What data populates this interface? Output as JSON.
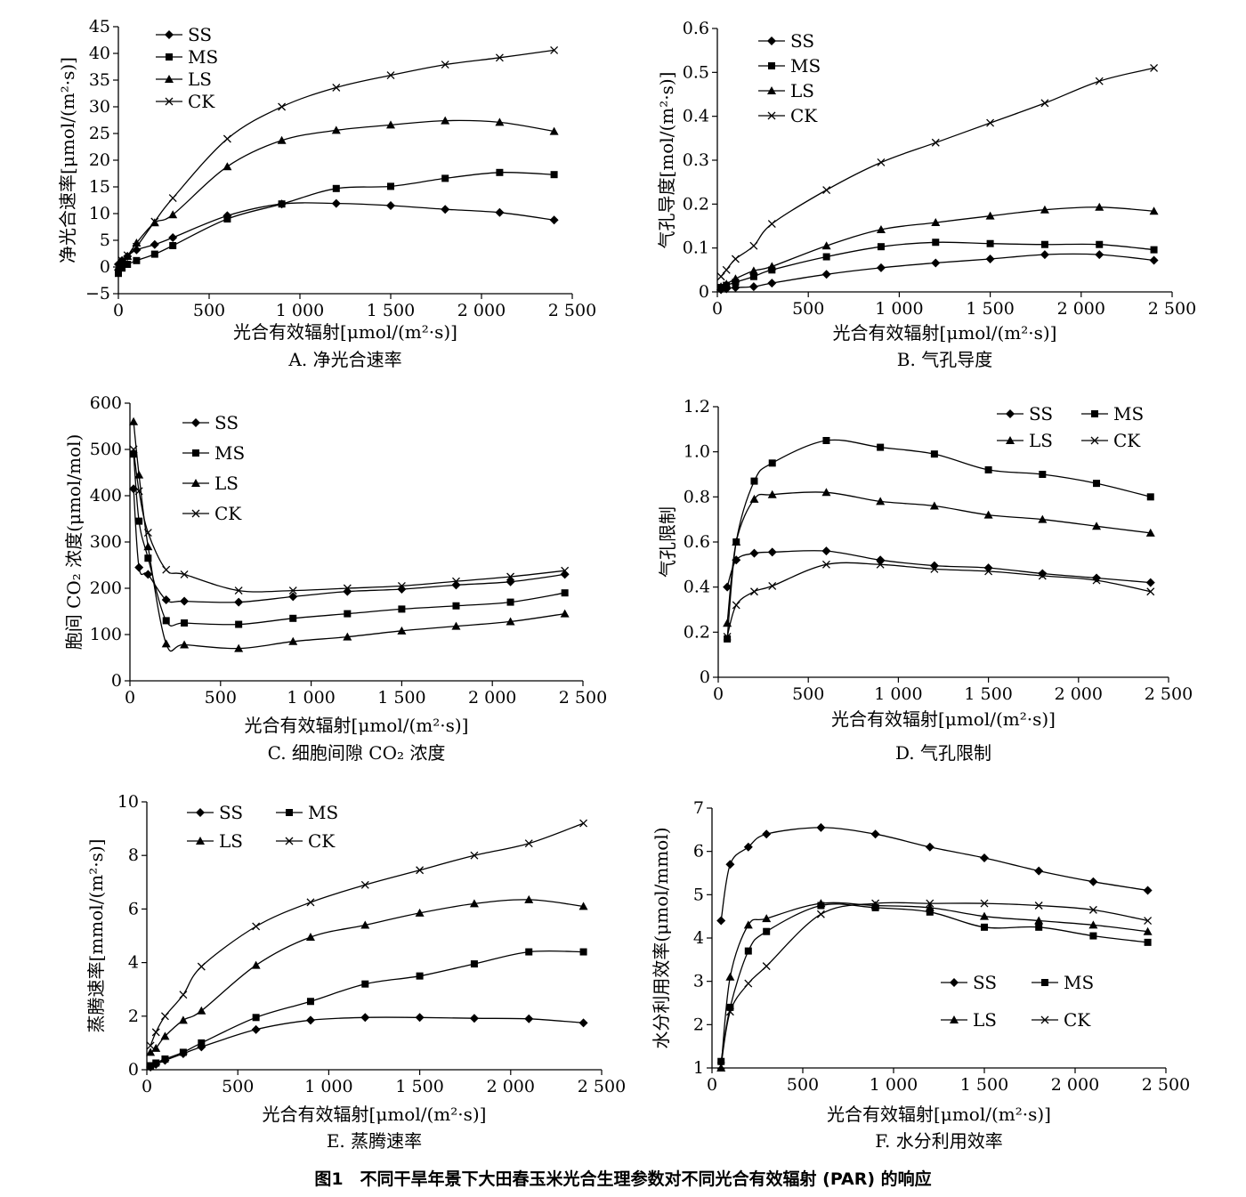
{
  "figure_caption": "图1　不同干旱年景下大田春玉米光合生理参数对不同光合有效辐射 (PAR) 的响应",
  "chart_data": [
    {
      "id": "A",
      "type": "line",
      "panel_title": "A. 净光合速率",
      "xlabel": "光合有效辐射[μmol/(m²·s)]",
      "ylabel": "净光合速率[μmol/(m²·s)]",
      "xlim": [
        0,
        2500
      ],
      "ylim": [
        -5,
        45
      ],
      "xticks": [
        0,
        500,
        1000,
        1500,
        2000,
        2500
      ],
      "xtick_labels": [
        "0",
        "500",
        "1 000",
        "1 500",
        "2 000",
        "2 500"
      ],
      "yticks": [
        -5,
        0,
        5,
        10,
        15,
        20,
        25,
        30,
        35,
        40,
        45
      ],
      "ytick_labels": [
        "−5",
        "0",
        "5",
        "10",
        "15",
        "20",
        "25",
        "30",
        "35",
        "40",
        "45"
      ],
      "legend": "top-left",
      "legend_cols": 1,
      "series": [
        {
          "name": "SS",
          "marker": "diamond",
          "x": [
            0,
            20,
            50,
            100,
            200,
            300,
            600,
            900,
            1200,
            1500,
            1800,
            2100,
            2400
          ],
          "y": [
            0.5,
            1.2,
            2.0,
            3.2,
            4.2,
            5.5,
            9.6,
            11.8,
            11.9,
            11.5,
            10.8,
            10.2,
            8.8
          ]
        },
        {
          "name": "MS",
          "marker": "square",
          "x": [
            0,
            20,
            50,
            100,
            200,
            300,
            600,
            900,
            1200,
            1500,
            1800,
            2100,
            2400
          ],
          "y": [
            -1.2,
            -0.2,
            0.5,
            1.2,
            2.4,
            4.0,
            9.0,
            11.8,
            14.7,
            15.1,
            16.6,
            17.7,
            17.3
          ]
        },
        {
          "name": "LS",
          "marker": "triangle",
          "x": [
            0,
            20,
            50,
            100,
            200,
            300,
            600,
            900,
            1200,
            1500,
            1800,
            2100,
            2400
          ],
          "y": [
            0.0,
            0.8,
            2.0,
            4.5,
            8.3,
            9.8,
            18.8,
            23.7,
            25.6,
            26.6,
            27.4,
            27.1,
            25.4
          ]
        },
        {
          "name": "CK",
          "marker": "x",
          "x": [
            0,
            20,
            50,
            100,
            200,
            300,
            600,
            900,
            1200,
            1500,
            1800,
            2100,
            2400
          ],
          "y": [
            0.0,
            1.2,
            2.2,
            3.8,
            8.5,
            12.9,
            24.0,
            30.0,
            33.6,
            35.9,
            37.9,
            39.2,
            40.6
          ]
        }
      ]
    },
    {
      "id": "B",
      "type": "line",
      "panel_title": "B. 气孔导度",
      "xlabel": "光合有效辐射[μmol/(m²·s)]",
      "ylabel": "气孔导度[mol/(m²·s)]",
      "xlim": [
        0,
        2500
      ],
      "ylim": [
        0,
        0.6
      ],
      "xticks": [
        0,
        500,
        1000,
        1500,
        2000,
        2500
      ],
      "xtick_labels": [
        "0",
        "500",
        "1 000",
        "1 500",
        "2 000",
        "2 500"
      ],
      "yticks": [
        0,
        0.1,
        0.2,
        0.3,
        0.4,
        0.5,
        0.6
      ],
      "ytick_labels": [
        "0",
        "0.1",
        "0.2",
        "0.3",
        "0.4",
        "0.5",
        "0.6"
      ],
      "legend": "top-left",
      "legend_cols": 1,
      "series": [
        {
          "name": "SS",
          "marker": "diamond",
          "x": [
            20,
            50,
            100,
            200,
            300,
            600,
            900,
            1200,
            1500,
            1800,
            2100,
            2400
          ],
          "y": [
            0.005,
            0.007,
            0.01,
            0.012,
            0.02,
            0.04,
            0.055,
            0.066,
            0.075,
            0.085,
            0.085,
            0.072
          ]
        },
        {
          "name": "MS",
          "marker": "square",
          "x": [
            20,
            50,
            100,
            200,
            300,
            600,
            900,
            1200,
            1500,
            1800,
            2100,
            2400
          ],
          "y": [
            0.01,
            0.015,
            0.022,
            0.035,
            0.05,
            0.08,
            0.103,
            0.113,
            0.11,
            0.108,
            0.108,
            0.096
          ]
        },
        {
          "name": "LS",
          "marker": "triangle",
          "x": [
            20,
            50,
            100,
            200,
            300,
            600,
            900,
            1200,
            1500,
            1800,
            2100,
            2400
          ],
          "y": [
            0.012,
            0.018,
            0.03,
            0.048,
            0.058,
            0.105,
            0.142,
            0.158,
            0.173,
            0.187,
            0.193,
            0.184
          ]
        },
        {
          "name": "CK",
          "marker": "x",
          "x": [
            20,
            50,
            100,
            200,
            300,
            600,
            900,
            1200,
            1500,
            1800,
            2100,
            2400
          ],
          "y": [
            0.035,
            0.05,
            0.075,
            0.105,
            0.155,
            0.232,
            0.295,
            0.34,
            0.385,
            0.43,
            0.48,
            0.51
          ]
        }
      ]
    },
    {
      "id": "C",
      "type": "line",
      "panel_title": "C. 细胞间隙 CO₂ 浓度",
      "xlabel": "光合有效辐射[μmol/(m²·s)]",
      "ylabel": "胞间 CO₂ 浓度(μmol/mol)",
      "xlim": [
        0,
        2500
      ],
      "ylim": [
        0,
        600
      ],
      "xticks": [
        0,
        500,
        1000,
        1500,
        2000,
        2500
      ],
      "xtick_labels": [
        "0",
        "500",
        "1 000",
        "1 500",
        "2 000",
        "2 500"
      ],
      "yticks": [
        0,
        100,
        200,
        300,
        400,
        500,
        600
      ],
      "ytick_labels": [
        "0",
        "100",
        "200",
        "300",
        "400",
        "500",
        "600"
      ],
      "legend": "top-left",
      "legend_cols": 1,
      "series": [
        {
          "name": "SS",
          "marker": "diamond",
          "x": [
            20,
            50,
            100,
            200,
            300,
            600,
            900,
            1200,
            1500,
            1800,
            2100,
            2400
          ],
          "y": [
            415,
            245,
            230,
            175,
            172,
            170,
            182,
            193,
            198,
            207,
            214,
            230
          ]
        },
        {
          "name": "MS",
          "marker": "square",
          "x": [
            20,
            50,
            100,
            200,
            300,
            600,
            900,
            1200,
            1500,
            1800,
            2100,
            2400
          ],
          "y": [
            490,
            345,
            265,
            130,
            125,
            122,
            135,
            145,
            155,
            162,
            170,
            190
          ]
        },
        {
          "name": "LS",
          "marker": "triangle",
          "x": [
            20,
            50,
            100,
            200,
            300,
            600,
            900,
            1200,
            1500,
            1800,
            2100,
            2400
          ],
          "y": [
            560,
            445,
            290,
            80,
            78,
            70,
            85,
            95,
            108,
            118,
            128,
            145
          ]
        },
        {
          "name": "CK",
          "marker": "x",
          "x": [
            20,
            50,
            100,
            200,
            300,
            600,
            900,
            1200,
            1500,
            1800,
            2100,
            2400
          ],
          "y": [
            500,
            410,
            320,
            240,
            230,
            195,
            195,
            200,
            205,
            215,
            225,
            238
          ]
        }
      ]
    },
    {
      "id": "D",
      "type": "line",
      "panel_title": "D. 气孔限制",
      "xlabel": "光合有效辐射[μmol/(m²·s)]",
      "ylabel": "气孔限制",
      "xlim": [
        0,
        2500
      ],
      "ylim": [
        0,
        1.2
      ],
      "xticks": [
        0,
        500,
        1000,
        1500,
        2000,
        2500
      ],
      "xtick_labels": [
        "0",
        "500",
        "1 000",
        "1 500",
        "2 000",
        "2 500"
      ],
      "yticks": [
        0,
        0.2,
        0.4,
        0.6,
        0.8,
        1.0,
        1.2
      ],
      "ytick_labels": [
        "0",
        "0.2",
        "0.4",
        "0.6",
        "0.8",
        "1.0",
        "1.2"
      ],
      "legend": "top-right",
      "legend_cols": 2,
      "series": [
        {
          "name": "SS",
          "marker": "diamond",
          "x": [
            50,
            100,
            200,
            300,
            600,
            900,
            1200,
            1500,
            1800,
            2100,
            2400
          ],
          "y": [
            0.4,
            0.52,
            0.55,
            0.555,
            0.56,
            0.52,
            0.495,
            0.485,
            0.46,
            0.44,
            0.42
          ]
        },
        {
          "name": "MS",
          "marker": "square",
          "x": [
            50,
            100,
            200,
            300,
            600,
            900,
            1200,
            1500,
            1800,
            2100,
            2400
          ],
          "y": [
            0.17,
            0.6,
            0.87,
            0.95,
            1.05,
            1.02,
            0.99,
            0.92,
            0.9,
            0.86,
            0.8
          ]
        },
        {
          "name": "LS",
          "marker": "triangle",
          "x": [
            50,
            100,
            200,
            300,
            600,
            900,
            1200,
            1500,
            1800,
            2100,
            2400
          ],
          "y": [
            0.24,
            0.6,
            0.79,
            0.81,
            0.82,
            0.78,
            0.76,
            0.72,
            0.7,
            0.67,
            0.64
          ]
        },
        {
          "name": "CK",
          "marker": "x",
          "x": [
            50,
            100,
            200,
            300,
            600,
            900,
            1200,
            1500,
            1800,
            2100,
            2400
          ],
          "y": [
            0.18,
            0.32,
            0.38,
            0.405,
            0.5,
            0.5,
            0.48,
            0.47,
            0.45,
            0.43,
            0.38
          ]
        }
      ]
    },
    {
      "id": "E",
      "type": "line",
      "panel_title": "E. 蒸腾速率",
      "xlabel": "光合有效辐射[μmol/(m²·s)]",
      "ylabel": "蒸腾速率[mmol/(m²·s)]",
      "xlim": [
        0,
        2500
      ],
      "ylim": [
        0,
        10
      ],
      "xticks": [
        0,
        500,
        1000,
        1500,
        2000,
        2500
      ],
      "xtick_labels": [
        "0",
        "500",
        "1 000",
        "1 500",
        "2 000",
        "2 500"
      ],
      "yticks": [
        0,
        2,
        4,
        6,
        8,
        10
      ],
      "ytick_labels": [
        "0",
        "2",
        "4",
        "6",
        "8",
        "10"
      ],
      "legend": "top-left",
      "legend_cols": 2,
      "series": [
        {
          "name": "SS",
          "marker": "diamond",
          "x": [
            20,
            50,
            100,
            200,
            300,
            600,
            900,
            1200,
            1500,
            1800,
            2100,
            2400
          ],
          "y": [
            0.1,
            0.2,
            0.35,
            0.6,
            0.85,
            1.5,
            1.85,
            1.95,
            1.95,
            1.92,
            1.9,
            1.75
          ]
        },
        {
          "name": "MS",
          "marker": "square",
          "x": [
            20,
            50,
            100,
            200,
            300,
            600,
            900,
            1200,
            1500,
            1800,
            2100,
            2400
          ],
          "y": [
            0.15,
            0.25,
            0.4,
            0.65,
            1.0,
            1.95,
            2.55,
            3.2,
            3.5,
            3.95,
            4.4,
            4.4
          ]
        },
        {
          "name": "LS",
          "marker": "triangle",
          "x": [
            20,
            50,
            100,
            200,
            300,
            600,
            900,
            1200,
            1500,
            1800,
            2100,
            2400
          ],
          "y": [
            0.65,
            0.8,
            1.25,
            1.85,
            2.2,
            3.9,
            4.95,
            5.4,
            5.85,
            6.2,
            6.35,
            6.1
          ]
        },
        {
          "name": "CK",
          "marker": "x",
          "x": [
            20,
            50,
            100,
            200,
            300,
            600,
            900,
            1200,
            1500,
            1800,
            2100,
            2400
          ],
          "y": [
            0.9,
            1.4,
            2.0,
            2.8,
            3.85,
            5.35,
            6.25,
            6.9,
            7.45,
            8.0,
            8.45,
            9.2
          ]
        }
      ]
    },
    {
      "id": "F",
      "type": "line",
      "panel_title": "F. 水分利用效率",
      "xlabel": "光合有效辐射[μmol/(m²·s)]",
      "ylabel": "水分利用效率(μmol/mmol)",
      "xlim": [
        0,
        2500
      ],
      "ylim": [
        1,
        7
      ],
      "xticks": [
        0,
        500,
        1000,
        1500,
        2000,
        2500
      ],
      "xtick_labels": [
        "0",
        "500",
        "1 000",
        "1 500",
        "2 000",
        "2 500"
      ],
      "yticks": [
        1,
        2,
        3,
        4,
        5,
        6,
        7
      ],
      "ytick_labels": [
        "1",
        "2",
        "3",
        "4",
        "5",
        "6",
        "7"
      ],
      "legend": "bottom-right",
      "legend_cols": 2,
      "series": [
        {
          "name": "SS",
          "marker": "diamond",
          "x": [
            50,
            100,
            200,
            300,
            600,
            900,
            1200,
            1500,
            1800,
            2100,
            2400
          ],
          "y": [
            4.4,
            5.7,
            6.1,
            6.4,
            6.55,
            6.4,
            6.1,
            5.85,
            5.55,
            5.3,
            5.1
          ]
        },
        {
          "name": "MS",
          "marker": "square",
          "x": [
            50,
            100,
            200,
            300,
            600,
            900,
            1200,
            1500,
            1800,
            2100,
            2400
          ],
          "y": [
            1.15,
            2.4,
            3.7,
            4.15,
            4.75,
            4.7,
            4.6,
            4.25,
            4.25,
            4.05,
            3.9
          ]
        },
        {
          "name": "LS",
          "marker": "triangle",
          "x": [
            50,
            100,
            200,
            300,
            600,
            900,
            1200,
            1500,
            1800,
            2100,
            2400
          ],
          "y": [
            1.0,
            3.1,
            4.3,
            4.45,
            4.8,
            4.75,
            4.7,
            4.5,
            4.4,
            4.3,
            4.15
          ]
        },
        {
          "name": "CK",
          "marker": "x",
          "x": [
            50,
            100,
            200,
            300,
            600,
            900,
            1200,
            1500,
            1800,
            2100,
            2400
          ],
          "y": [
            1.05,
            2.3,
            2.95,
            3.35,
            4.55,
            4.8,
            4.8,
            4.8,
            4.75,
            4.65,
            4.4
          ]
        }
      ]
    }
  ]
}
